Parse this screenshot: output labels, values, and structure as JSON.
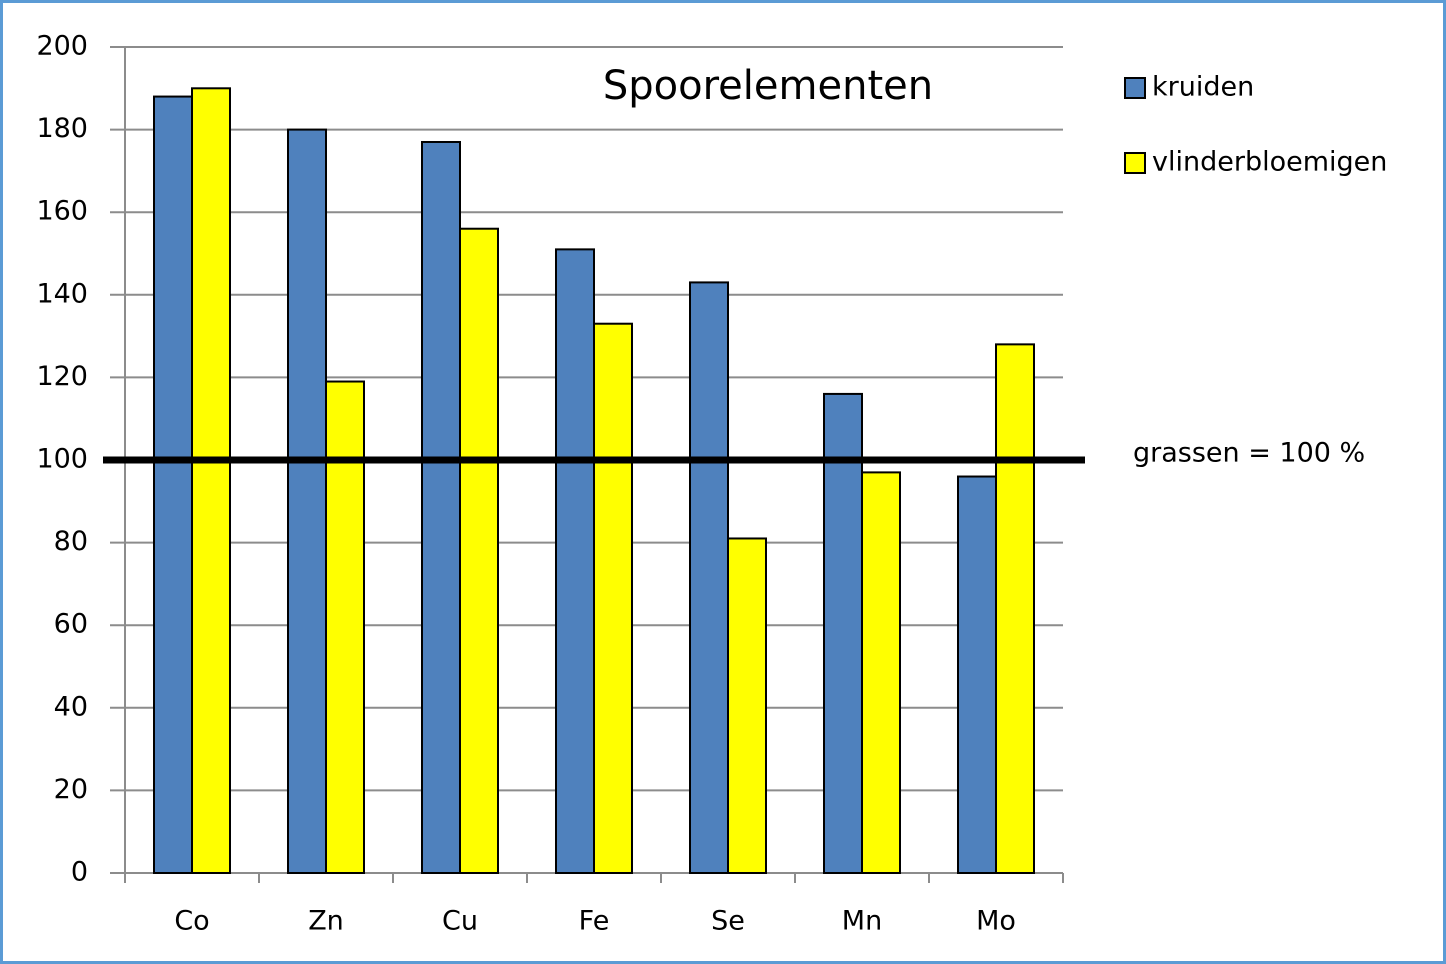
{
  "chart_data": {
    "type": "bar",
    "title": "Spoorelementen",
    "categories": [
      "Co",
      "Zn",
      "Cu",
      "Fe",
      "Se",
      "Mn",
      "Mo"
    ],
    "series": [
      {
        "name": "kruiden",
        "color": "#4f81bd",
        "values": [
          188,
          180,
          177,
          151,
          143,
          116,
          96
        ]
      },
      {
        "name": "vlinderbloemigen",
        "color": "#ffff00",
        "values": [
          190,
          119,
          156,
          133,
          81,
          97,
          128
        ]
      }
    ],
    "ylim": [
      0,
      200
    ],
    "yticks": [
      0,
      20,
      40,
      60,
      80,
      100,
      120,
      140,
      160,
      180,
      200
    ],
    "grid": true,
    "reference": {
      "value": 100,
      "label": "grassen = 100 %"
    },
    "legend": "right"
  }
}
